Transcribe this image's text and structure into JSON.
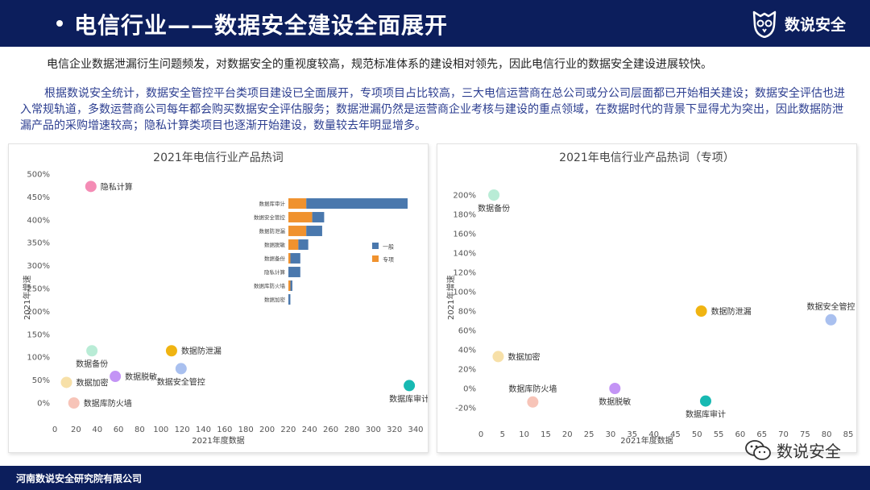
{
  "header": {
    "title": "电信行业——数据安全建设全面展开",
    "brand_name": "数说安全"
  },
  "intro": {
    "line1": "电信企业数据泄漏衍生问题频发，对数据安全的重视度较高，规范标准体系的建设相对领先，因此电信行业的数据安全建设进展较快。",
    "para2": "根据数说安全统计，数据安全管控平台类项目建设已全面展开，专项项目占比较高，三大电信运营商在总公司或分公司层面都已开始相关建设；数据安全评估也进入常规轨道，多数运营商公司每年都会购买数据安全评估服务；数据泄漏仍然是运营商企业考核与建设的重点领域，在数据时代的背景下显得尤为突出，因此数据防泄漏产品的采购增速较高；隐私计算类项目也逐渐开始建设，数量较去年明显增多。"
  },
  "footer": {
    "org": "河南数说安全研究院有限公司",
    "wechat_label": "数说安全"
  },
  "colors": {
    "header_bg": "#0c1e5c",
    "general_bar": "#4a78ad",
    "special_bar": "#f0922e"
  },
  "chart_data": [
    {
      "type": "scatter",
      "title": "2021年电信行业产品热词",
      "xlabel": "2021年度数据",
      "ylabel": "2021年增速",
      "xlim": [
        0,
        340
      ],
      "ylim": [
        0,
        500
      ],
      "x_ticks": [
        "0",
        "20",
        "40",
        "60",
        "80",
        "100",
        "120",
        "140",
        "160",
        "180",
        "200",
        "220",
        "240",
        "260",
        "280",
        "300",
        "320",
        "340"
      ],
      "y_ticks": [
        "0%",
        "50%",
        "100%",
        "150%",
        "200%",
        "250%",
        "300%",
        "350%",
        "400%",
        "450%",
        "500%"
      ],
      "points": [
        {
          "label": "隐私计算",
          "x": 34,
          "y": 473,
          "color": "#f48cb5",
          "label_pos": "right"
        },
        {
          "label": "数据备份",
          "x": 35,
          "y": 114,
          "color": "#b9ecd6",
          "label_pos": "below"
        },
        {
          "label": "数据防泄漏",
          "x": 110,
          "y": 114,
          "color": "#f0b412",
          "label_pos": "right"
        },
        {
          "label": "数据脱敏",
          "x": 57,
          "y": 58,
          "color": "#c394f5",
          "label_pos": "right"
        },
        {
          "label": "数据安全管控",
          "x": 119,
          "y": 75,
          "color": "#a9c0ef",
          "label_pos": "below"
        },
        {
          "label": "数据加密",
          "x": 11,
          "y": 45,
          "color": "#f7e0a8",
          "label_pos": "right"
        },
        {
          "label": "数据库防火墙",
          "x": 18,
          "y": 0,
          "color": "#f7c4b8",
          "label_pos": "right"
        },
        {
          "label": "数据库审计",
          "x": 334,
          "y": 38,
          "color": "#17b9b2",
          "label_pos": "below"
        }
      ],
      "inset": {
        "type": "bar",
        "orientation": "horizontal",
        "stacked": true,
        "categories": [
          "数据库审计",
          "数据安全管控",
          "数据防泄漏",
          "数据脱敏",
          "数据备份",
          "隐私计算",
          "数据库防火墙",
          "数据加密"
        ],
        "series": [
          {
            "name": "专项",
            "values": [
              9,
              12,
              9,
              5,
              1,
              0,
              1,
              0
            ]
          },
          {
            "name": "一般",
            "values": [
              51,
              6,
              8,
              5,
              5,
              6,
              1,
              1
            ]
          }
        ],
        "legend": [
          "一般",
          "专项"
        ]
      }
    },
    {
      "type": "scatter",
      "title": "2021年电信行业产品热词（专项）",
      "xlabel": "2021年度数据",
      "ylabel": "2021年增速",
      "xlim": [
        0,
        85
      ],
      "ylim": [
        -20,
        210
      ],
      "x_ticks": [
        "0",
        "5",
        "10",
        "15",
        "20",
        "25",
        "30",
        "35",
        "40",
        "45",
        "50",
        "55",
        "60",
        "65",
        "70",
        "75",
        "80",
        "85"
      ],
      "y_ticks": [
        "-20%",
        "0%",
        "20%",
        "40%",
        "60%",
        "80%",
        "100%",
        "120%",
        "140%",
        "160%",
        "180%",
        "200%"
      ],
      "points": [
        {
          "label": "数据备份",
          "x": 3,
          "y": 200,
          "color": "#b9ecd6",
          "label_pos": "below"
        },
        {
          "label": "数据防泄漏",
          "x": 51,
          "y": 80,
          "color": "#f0b412",
          "label_pos": "right"
        },
        {
          "label": "数据安全管控",
          "x": 81,
          "y": 71,
          "color": "#a9c0ef",
          "label_pos": "above"
        },
        {
          "label": "数据加密",
          "x": 4,
          "y": 33,
          "color": "#f7e0a8",
          "label_pos": "right"
        },
        {
          "label": "数据库防火墙",
          "x": 12,
          "y": -14,
          "color": "#f7c4b8",
          "label_pos": "above"
        },
        {
          "label": "数据脱敏",
          "x": 31,
          "y": 0,
          "color": "#c394f5",
          "label_pos": "below"
        },
        {
          "label": "数据库审计",
          "x": 52,
          "y": -13,
          "color": "#17b9b2",
          "label_pos": "below"
        }
      ]
    }
  ]
}
